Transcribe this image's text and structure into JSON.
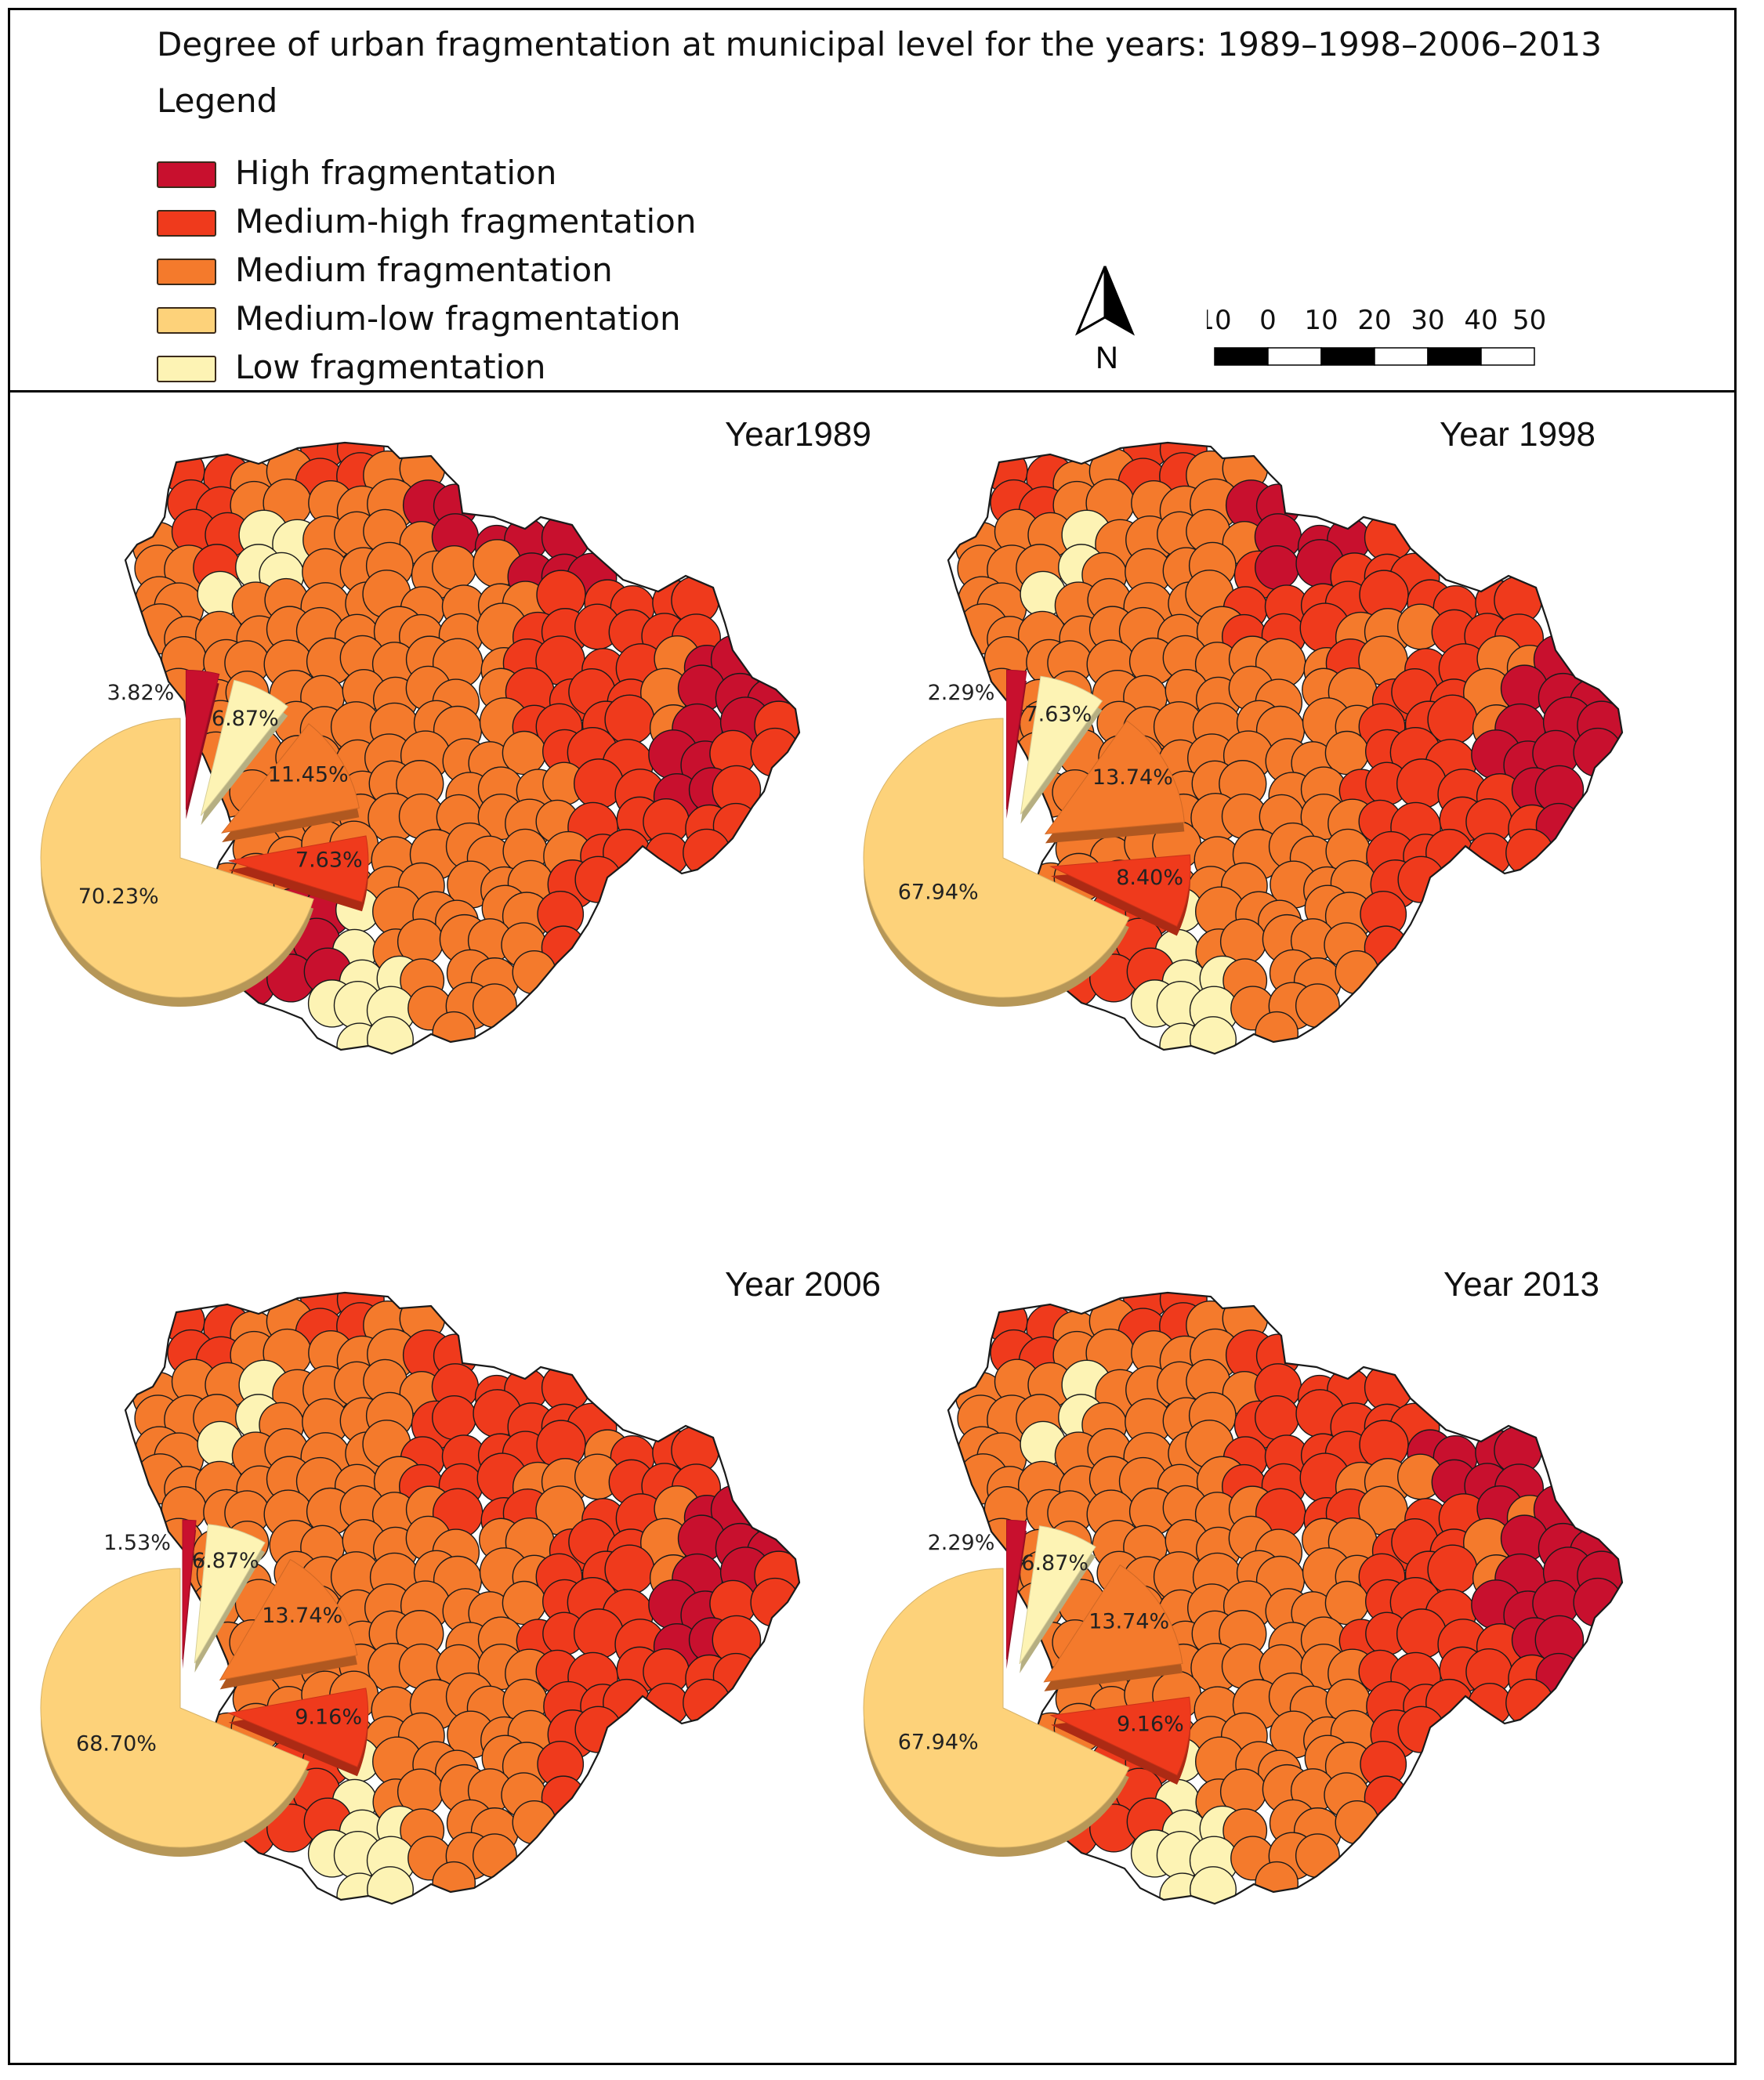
{
  "title": "Degree of urban fragmentation at municipal level for the years: 1989–1998–2006–2013",
  "legend": {
    "title": "Legend",
    "classes": [
      {
        "label": "High fragmentation",
        "color": "#c8102e"
      },
      {
        "label": "Medium-high fragmentation",
        "color": "#ef3a1c"
      },
      {
        "label": "Medium fragmentation",
        "color": "#f47a2c"
      },
      {
        "label": "Medium-low fragmentation",
        "color": "#fdd27a"
      },
      {
        "label": "Low fragmentation",
        "color": "#fdf3b4"
      }
    ]
  },
  "north_arrow": {
    "label": "N",
    "icon": "north-arrow-icon"
  },
  "scale_bar": {
    "ticks": [
      "10",
      "0",
      "10",
      "20",
      "30",
      "40",
      "50 km"
    ]
  },
  "map_colors": {
    "border": "#1a1a1a"
  },
  "panels": [
    {
      "year_label": "Year1989",
      "pie": {
        "High fragmentation": "3.82%",
        "Low fragmentation": "6.87%",
        "Medium fragmentation": "11.45%",
        "Medium-high fragmentation": "7.63%",
        "Medium-low fragmentation": "70.23%"
      },
      "values": [
        3.82,
        6.87,
        11.45,
        7.63,
        70.23
      ]
    },
    {
      "year_label": "Year 1998",
      "pie": {
        "High fragmentation": "2.29%",
        "Low fragmentation": "7.63%",
        "Medium fragmentation": "13.74%",
        "Medium-high fragmentation": "8.40%",
        "Medium-low fragmentation": "67.94%"
      },
      "values": [
        2.29,
        7.63,
        13.74,
        8.4,
        67.94
      ]
    },
    {
      "year_label": "Year 2006",
      "pie": {
        "High fragmentation": "1.53%",
        "Low fragmentation": "6.87%",
        "Medium fragmentation": "13.74%",
        "Medium-high fragmentation": "9.16%",
        "Medium-low fragmentation": "68.70%"
      },
      "values": [
        1.53,
        6.87,
        13.74,
        9.16,
        68.7
      ]
    },
    {
      "year_label": "Year 2013",
      "pie": {
        "High fragmentation": "2.29%",
        "Low fragmentation": "6.87%",
        "Medium fragmentation": "13.74%",
        "Medium-high fragmentation": "9.16%",
        "Medium-low fragmentation": "67.94%"
      },
      "values": [
        2.29,
        6.87,
        13.74,
        9.16,
        67.94
      ]
    }
  ],
  "chart_data": [
    {
      "type": "pie",
      "title": "Year1989",
      "categories": [
        "High fragmentation",
        "Low fragmentation",
        "Medium fragmentation",
        "Medium-high fragmentation",
        "Medium-low fragmentation"
      ],
      "values": [
        3.82,
        6.87,
        11.45,
        7.63,
        70.23
      ]
    },
    {
      "type": "pie",
      "title": "Year 1998",
      "categories": [
        "High fragmentation",
        "Low fragmentation",
        "Medium fragmentation",
        "Medium-high fragmentation",
        "Medium-low fragmentation"
      ],
      "values": [
        2.29,
        7.63,
        13.74,
        8.4,
        67.94
      ]
    },
    {
      "type": "pie",
      "title": "Year 2006",
      "categories": [
        "High fragmentation",
        "Low fragmentation",
        "Medium fragmentation",
        "Medium-high fragmentation",
        "Medium-low fragmentation"
      ],
      "values": [
        1.53,
        6.87,
        13.74,
        9.16,
        68.7
      ]
    },
    {
      "type": "pie",
      "title": "Year 2013",
      "categories": [
        "High fragmentation",
        "Low fragmentation",
        "Medium fragmentation",
        "Medium-high fragmentation",
        "Medium-low fragmentation"
      ],
      "values": [
        2.29,
        6.87,
        13.74,
        9.16,
        67.94
      ]
    }
  ]
}
